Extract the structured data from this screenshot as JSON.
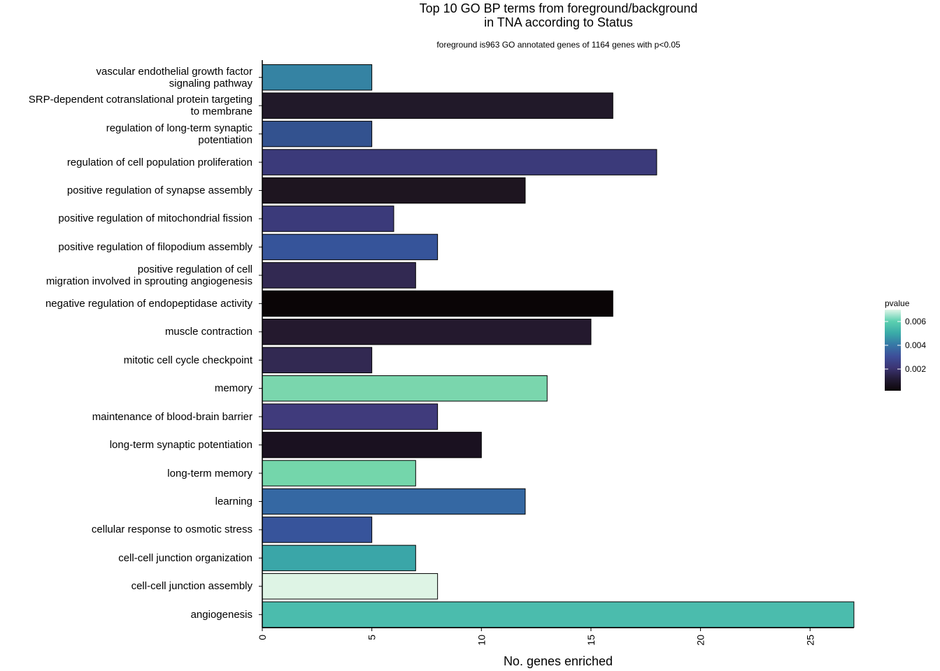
{
  "chart_data": {
    "type": "bar",
    "orientation": "horizontal",
    "title": [
      "Top 10 GO BP terms from foreground/background",
      "in TNA according to Status"
    ],
    "subtitle": "foreground is963 GO annotated genes of 1164 genes with p<0.05",
    "xlabel": "No. genes enriched",
    "ylabel": "",
    "xlim": [
      0,
      27
    ],
    "xticks": [
      "0",
      "5",
      "10",
      "15",
      "20",
      "25"
    ],
    "categories": [
      [
        "vascular endothelial growth factor",
        "signaling pathway"
      ],
      [
        "SRP-dependent cotranslational protein targeting",
        "to membrane"
      ],
      [
        "regulation of long-term synaptic",
        "potentiation"
      ],
      [
        "regulation of cell population proliferation"
      ],
      [
        "positive regulation of synapse assembly"
      ],
      [
        "positive regulation of mitochondrial fission"
      ],
      [
        "positive regulation of filopodium assembly"
      ],
      [
        "positive regulation of cell",
        "migration involved in sprouting angiogenesis"
      ],
      [
        "negative regulation of endopeptidase activity"
      ],
      [
        "muscle contraction"
      ],
      [
        "mitotic cell cycle checkpoint"
      ],
      [
        "memory"
      ],
      [
        "maintenance of blood-brain barrier"
      ],
      [
        "long-term synaptic potentiation"
      ],
      [
        "long-term memory"
      ],
      [
        "learning"
      ],
      [
        "cellular response to osmotic stress"
      ],
      [
        "cell-cell junction organization"
      ],
      [
        "cell-cell junction assembly"
      ],
      [
        "angiogenesis"
      ]
    ],
    "values": [
      5,
      16,
      5,
      18,
      12,
      6,
      8,
      7,
      16,
      15,
      5,
      13,
      8,
      10,
      7,
      12,
      5,
      7,
      8,
      27
    ],
    "colors": [
      "#3583a3",
      "#211929",
      "#33528f",
      "#3b3a7a",
      "#1e1520",
      "#3b3a7a",
      "#36549a",
      "#322952",
      "#0a0506",
      "#24192e",
      "#322952",
      "#7ad6ad",
      "#403b7c",
      "#1a1120",
      "#74d6ab",
      "#3568a3",
      "#37549b",
      "#3aa6a8",
      "#def4e5",
      "#4bbcad"
    ],
    "legend": {
      "title": "pvalue",
      "ticks": [
        "0.006",
        "0.004",
        "0.002"
      ],
      "gradient": [
        "#e0f5e8",
        "#5cd0b0",
        "#3aaca8",
        "#3679a6",
        "#3d4f9a",
        "#3c3574",
        "#231b36",
        "#0c0608"
      ]
    },
    "grid": false
  }
}
